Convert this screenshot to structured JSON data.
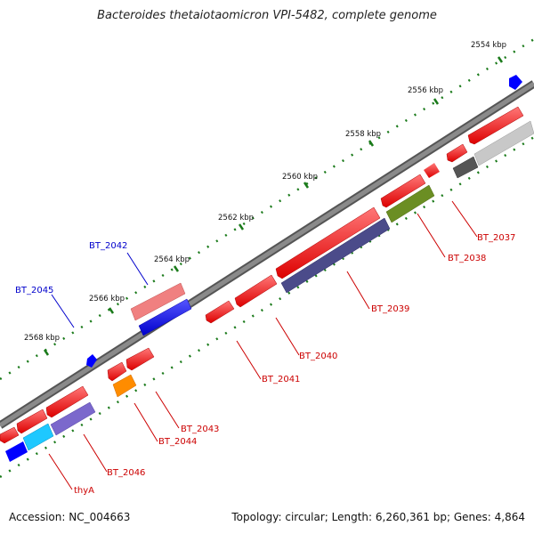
{
  "title": "Bacteroides thetaiotaomicron VPI-5482, complete genome",
  "accession": "Accession: NC_004663",
  "topology": "Topology: circular; Length: 6,260,361 bp; Genes: 4,864",
  "kbp_labels": [
    "2554 kbp",
    "2556 kbp",
    "2558 kbp",
    "2560 kbp",
    "2562 kbp",
    "2564 kbp",
    "2566 kbp",
    "2568 kbp"
  ],
  "gene_labels_top": [
    "BT_2042",
    "BT_2045"
  ],
  "gene_labels_bottom": [
    "BT_2037",
    "BT_2038",
    "BT_2039",
    "BT_2040",
    "BT_2041",
    "BT_2043",
    "BT_2044",
    "BT_2046",
    "thyA"
  ],
  "colors": {
    "red": "#ff0000",
    "blue": "#0000ff",
    "dark_green": "#117711",
    "label_red": "#cc0000",
    "label_blue": "#0000cc"
  }
}
